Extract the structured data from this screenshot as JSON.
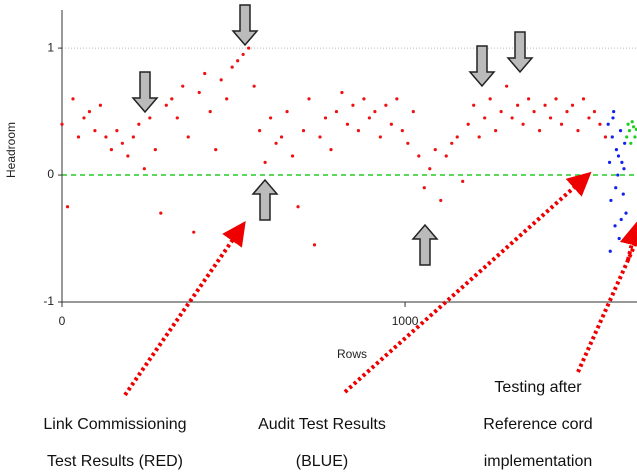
{
  "chart_data": {
    "type": "scatter",
    "y_label": "Headroom",
    "x_label": "Rows",
    "xlim": [
      0,
      1676
    ],
    "ylim": [
      -1,
      1.3
    ],
    "xticks": [
      0,
      1000
    ],
    "yticks": [
      -1,
      0,
      1
    ],
    "reference_line": 0,
    "reference_color": "#22cc22",
    "grid_color": "#bbbbbb",
    "annotations": [
      [
        "Link Commissioning",
        "Test Results (RED)"
      ],
      [
        "Audit Test Results",
        "(BLUE)"
      ],
      [
        "Testing after",
        "Reference cord",
        "implementation"
      ]
    ],
    "series": [
      {
        "color": "#ee1111",
        "x": [
          0,
          16,
          32,
          48,
          64,
          80,
          96,
          112,
          128,
          144,
          160,
          176,
          192,
          208,
          224,
          240,
          256,
          272,
          288,
          304,
          320,
          336,
          352,
          368,
          384,
          400,
          416,
          432,
          448,
          464,
          480,
          496,
          512,
          528,
          544,
          560,
          576,
          592,
          608,
          624,
          640,
          656,
          672,
          688,
          704,
          720,
          736,
          752,
          768,
          784,
          800,
          816,
          832,
          848,
          864,
          880,
          896,
          912,
          928,
          944,
          960,
          976,
          992,
          1008,
          1024,
          1040,
          1056,
          1072,
          1088,
          1104,
          1120,
          1136,
          1152,
          1168,
          1184,
          1200,
          1216,
          1232,
          1248,
          1264,
          1280,
          1296,
          1312,
          1328,
          1344,
          1360,
          1376,
          1392,
          1408,
          1424,
          1440,
          1456,
          1472,
          1488,
          1504,
          1520,
          1536,
          1552,
          1568,
          1584
        ],
        "values": [
          0.4,
          -0.25,
          0.6,
          0.3,
          0.45,
          0.5,
          0.35,
          0.55,
          0.3,
          0.2,
          0.35,
          0.25,
          0.15,
          0.3,
          0.4,
          0.05,
          0.45,
          0.2,
          -0.3,
          0.55,
          0.6,
          0.45,
          0.7,
          0.3,
          -0.45,
          0.65,
          0.8,
          0.5,
          0.2,
          0.75,
          0.6,
          0.85,
          0.9,
          0.95,
          1.0,
          0.7,
          0.35,
          0.1,
          0.45,
          0.25,
          0.3,
          0.5,
          0.15,
          -0.25,
          0.35,
          0.6,
          -0.55,
          0.3,
          0.45,
          0.2,
          0.5,
          0.65,
          0.4,
          0.55,
          0.35,
          0.6,
          0.45,
          0.5,
          0.3,
          0.55,
          0.4,
          0.6,
          0.35,
          0.25,
          0.5,
          0.15,
          -0.1,
          0.05,
          0.2,
          -0.2,
          0.15,
          0.25,
          0.3,
          -0.05,
          0.4,
          0.55,
          0.3,
          0.45,
          0.6,
          0.35,
          0.5,
          0.7,
          0.45,
          0.55,
          0.4,
          0.6,
          0.5,
          0.35,
          0.55,
          0.45,
          0.6,
          0.4,
          0.5,
          0.55,
          0.35,
          0.6,
          0.45,
          0.5,
          0.4,
          0.3
        ]
      },
      {
        "color": "#1122ee",
        "x": [
          1592,
          1596,
          1600,
          1604,
          1608,
          1612,
          1616,
          1620,
          1624,
          1628,
          1632,
          1636,
          1640,
          1644,
          1598,
          1606,
          1614,
          1622,
          1630,
          1638
        ],
        "values": [
          0.4,
          0.1,
          -0.2,
          0.3,
          0.5,
          -0.4,
          0.2,
          0.0,
          -0.5,
          0.35,
          0.1,
          -0.15,
          0.25,
          -0.3,
          -0.6,
          0.45,
          -0.1,
          0.15,
          -0.35,
          0.05
        ]
      },
      {
        "color": "#22cc22",
        "x": [
          1646,
          1650,
          1654,
          1658,
          1662,
          1666,
          1670,
          1674
        ],
        "values": [
          0.3,
          0.4,
          0.35,
          0.25,
          0.42,
          0.38,
          0.3,
          0.36
        ]
      }
    ]
  }
}
